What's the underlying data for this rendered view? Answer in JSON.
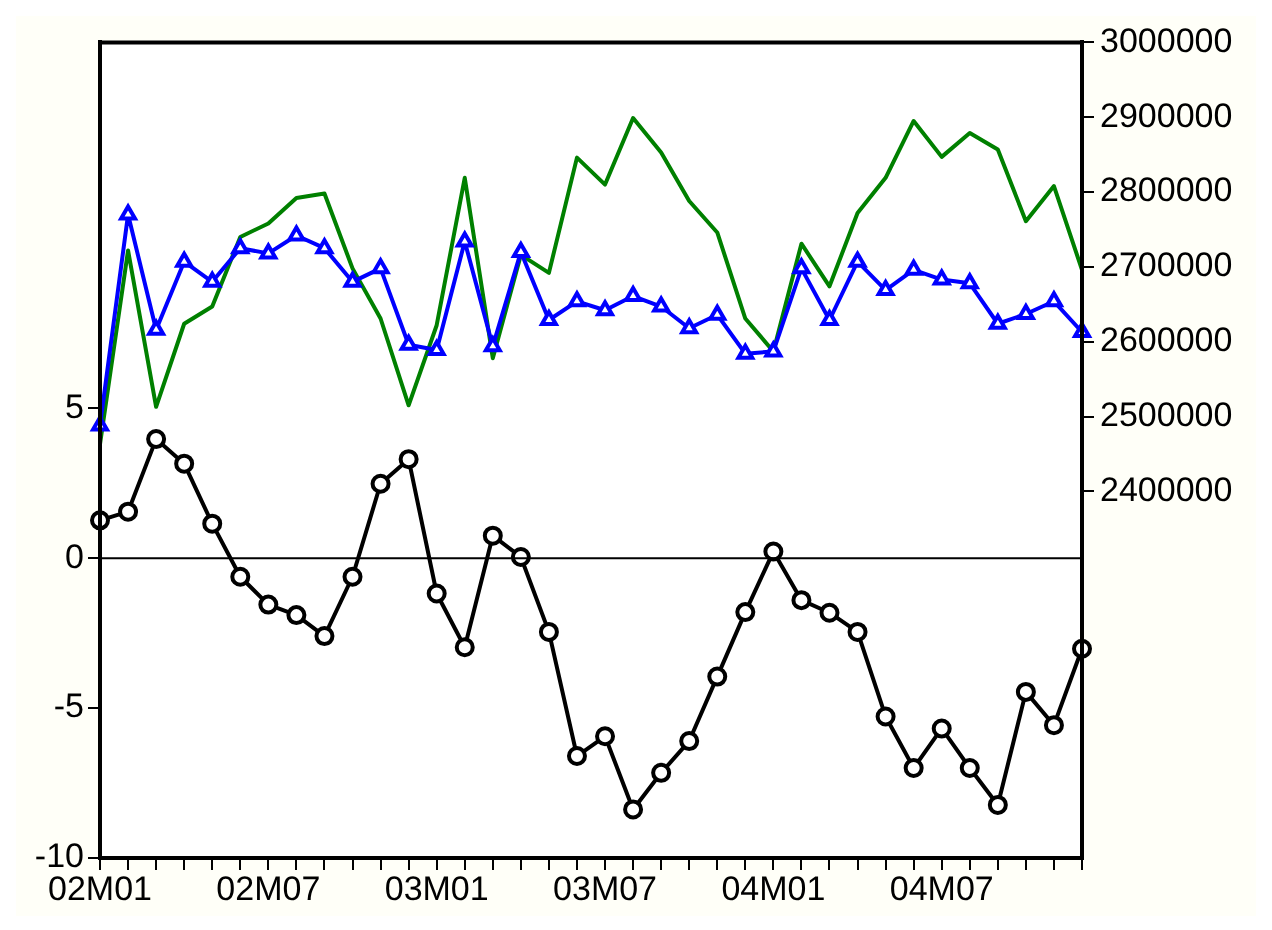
{
  "chart_data": {
    "type": "line",
    "categories": [
      "02M01",
      null,
      null,
      null,
      null,
      null,
      "02M07",
      null,
      null,
      null,
      null,
      null,
      "03M01",
      null,
      null,
      null,
      null,
      null,
      "03M07",
      null,
      null,
      null,
      null,
      null,
      "04M01",
      null,
      null,
      null,
      null,
      null,
      "04M07",
      null,
      null,
      null,
      null,
      null
    ],
    "series": [
      {
        "color": "#008000",
        "axis": "y2",
        "marker": "none",
        "values": [
          2463000,
          2722000,
          2513000,
          2624000,
          2647000,
          2740000,
          2758000,
          2792000,
          2798000,
          2698000,
          2631000,
          2515000,
          2622000,
          2819000,
          2578000,
          2716000,
          2692000,
          2846000,
          2810000,
          2899000,
          2853000,
          2788000,
          2746000,
          2631000,
          2587000,
          2731000,
          2674000,
          2772000,
          2819000,
          2895000,
          2847000,
          2879000,
          2857000,
          2761000,
          2808000,
          2696000
        ]
      },
      {
        "color": "#0000ff",
        "axis": "y2",
        "marker": "triangle",
        "values": [
          2488000,
          2770000,
          2616000,
          2707000,
          2680000,
          2725000,
          2718000,
          2742000,
          2725000,
          2680000,
          2698000,
          2596000,
          2589000,
          2734000,
          2594000,
          2720000,
          2629000,
          2654000,
          2642000,
          2661000,
          2647000,
          2618000,
          2636000,
          2584000,
          2587000,
          2698000,
          2629000,
          2707000,
          2669000,
          2696000,
          2683000,
          2678000,
          2624000,
          2637000,
          2654000,
          2613000
        ]
      },
      {
        "color": "#000000",
        "axis": "y",
        "marker": "circle",
        "values": [
          1.26,
          1.55,
          3.97,
          3.15,
          1.15,
          -0.62,
          -1.55,
          -1.9,
          -2.6,
          -0.62,
          2.48,
          3.3,
          -1.18,
          -2.97,
          0.75,
          0.04,
          -2.46,
          -6.6,
          -5.94,
          -8.38,
          -7.16,
          -6.1,
          -3.95,
          -1.8,
          0.22,
          -1.4,
          -1.82,
          -2.46,
          -5.28,
          -7.0,
          -5.68,
          -7.0,
          -8.23,
          -4.46,
          -5.57,
          -3.02
        ]
      }
    ],
    "ylim": [
      -10,
      17.2
    ],
    "yticks": [
      -10,
      -5,
      0,
      5
    ],
    "y2lim": [
      1910000,
      3000000
    ],
    "y2ticks": [
      2400000,
      2500000,
      2600000,
      2700000,
      2800000,
      2900000,
      3000000
    ],
    "ref_lines": [
      {
        "axis": "y",
        "value": 0,
        "color": "#000000"
      }
    ]
  }
}
